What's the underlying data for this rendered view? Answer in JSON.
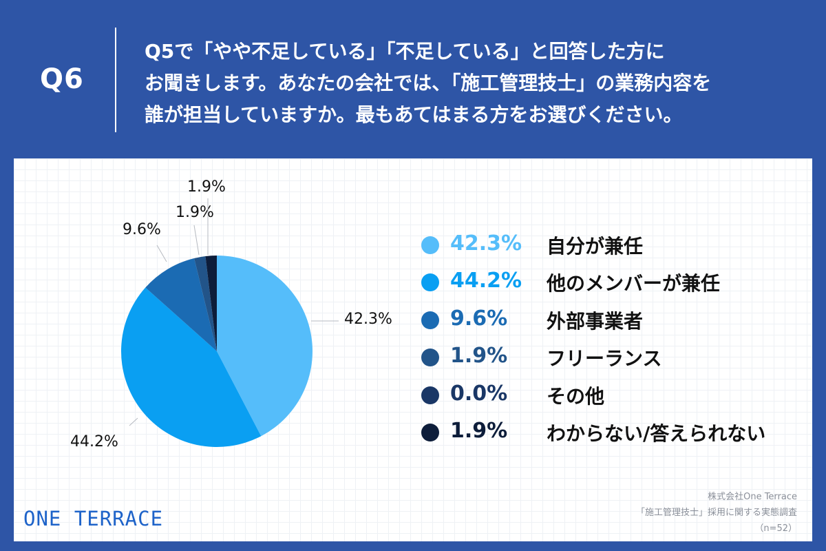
{
  "header": {
    "qnum": "Q6",
    "question_lines": [
      "Q5で「やや不足している」「不足している」と回答した方に",
      "お聞きします。あなたの会社では、「施工管理技士」の業務内容を",
      "誰が担当していますか。最もあてはまる方をお選びください。"
    ]
  },
  "chart_data": {
    "type": "pie",
    "title": "",
    "labels": [
      "自分が兼任",
      "他のメンバーが兼任",
      "外部事業者",
      "フリーランス",
      "その他",
      "わからない/答えられない"
    ],
    "values": [
      42.3,
      44.2,
      9.6,
      1.9,
      0.0,
      1.9
    ],
    "value_labels": [
      "42.3%",
      "44.2%",
      "9.6%",
      "1.9%",
      "0.0%",
      "1.9%"
    ],
    "colors": [
      "#55bdfa",
      "#0a9ff2",
      "#1b6bb3",
      "#225489",
      "#1a3766",
      "#0d1d3a"
    ],
    "start_angle_deg": 0,
    "direction": "clockwise",
    "legend_position": "right"
  },
  "footer": {
    "logo": "ONE TERRACE",
    "source_lines": [
      "株式会社One Terrace",
      "「施工管理技士」採用に関する実態調査",
      "（n=52）"
    ]
  }
}
